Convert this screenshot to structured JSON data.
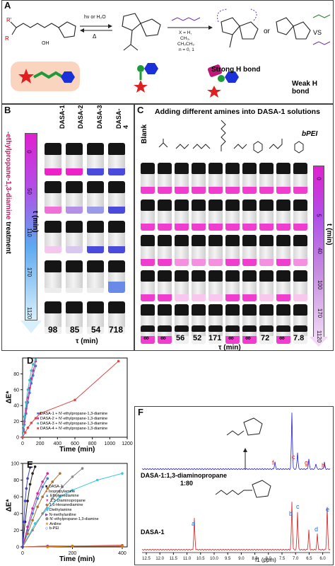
{
  "panelA": {
    "label": "A",
    "arrow1": "hν or H₂O",
    "arrow1_under": "Δ",
    "arrow2_top": "X = H,",
    "arrow2_mid": "CH₃,",
    "arrow2_mid2": "CH₂CH₃",
    "arrow2_bot": "n = 0, 1",
    "strong": "Strong H bond",
    "or": "or",
    "vs": "VS",
    "weak": "Weak H bond"
  },
  "panelB": {
    "label": "B",
    "columns": [
      "DASA-1",
      "DASA-2",
      "DASA-3",
      "DASA-4"
    ],
    "side_title": "N'-ethylpropane-1,3-diamine treatment",
    "side_title_prefix": "N'",
    "side_title_red": "-ethylpropane-1,3-diamine",
    "side_title_black": " treatment",
    "axis_label": "t (min)",
    "ticks": [
      "0",
      "50",
      "110",
      "170",
      "1120"
    ],
    "tau_values": [
      "98",
      "85",
      "54",
      "718"
    ],
    "tau_label": "τ (min)",
    "colors": {
      "magenta": "#ee22c8",
      "blue": "#4a4adc",
      "purple": "#8a6ad0"
    }
  },
  "panelC": {
    "label": "C",
    "title": "Adding different amines into DASA-1 solutions",
    "blank_label": "Blank",
    "bpei_label": "bPEI",
    "axis_label": "t (min)",
    "ticks": [
      "0",
      "5",
      "40",
      "100",
      "170",
      "1120"
    ],
    "tau_values": [
      "∞",
      "∞",
      "56",
      "52",
      "171",
      "∞",
      "∞",
      "72",
      "∞",
      "7.8"
    ],
    "tau_label": "τ (min)"
  },
  "panelD": {
    "label": "D",
    "ylabel": "ΔE*",
    "xlabel": "Time (min)",
    "legend": [
      "DASA-1 + N'-ethylpropane-1,3-diamine",
      "DASA-2 + N'-ethylpropane-1,3-diamine",
      "DASA-3 + N'-ethylpropane-1,3-diamine",
      "DASA-4 + N'-ethylpropane-1,3-diamine"
    ]
  },
  "panelE": {
    "label": "E",
    "ylabel": "ΔE*",
    "xlabel": "Time (min)",
    "legend": [
      "DASA-1",
      "Isopropylamine",
      "Ethylenediamine",
      "1,3-Diaminopropane",
      "1,6-Hexanediamine",
      "Diethylamine",
      "N-methylaniline",
      "N'-ethylpropane-1,3-diamine",
      "Aniline",
      "b-PEI"
    ]
  },
  "panelF": {
    "label": "F",
    "top_label": "DASA-1:1,3-diaminopropane",
    "top_ratio": "1:80",
    "bottom_label": "DASA-1",
    "xlabel": "f1 (ppm)",
    "peak_labels_top": [
      "f",
      "c",
      "g",
      "h"
    ],
    "peak_labels_bottom": [
      "a",
      "b",
      "c",
      "d",
      "e"
    ],
    "mol_labels": [
      "b",
      "c",
      "d",
      "e",
      "a"
    ]
  },
  "chart_data": [
    {
      "type": "scatter",
      "title": "D",
      "xlabel": "Time (min)",
      "ylabel": "ΔE*",
      "xlim": [
        0,
        1200
      ],
      "ylim": [
        0,
        100
      ],
      "xticks": [
        0,
        200,
        400,
        600,
        800,
        1000,
        1200
      ],
      "yticks": [
        0,
        20,
        40,
        60,
        80
      ],
      "series": [
        {
          "name": "DASA-1 + N'-ethylpropane-1,3-diamine",
          "color": "#3a7be0",
          "x": [
            0,
            10,
            20,
            40,
            60,
            80,
            100,
            120,
            150
          ],
          "y": [
            0,
            8,
            16,
            30,
            44,
            56,
            68,
            78,
            90
          ]
        },
        {
          "name": "DASA-2 + N'-ethylpropane-1,3-diamine",
          "color": "#d02aa0",
          "x": [
            0,
            10,
            20,
            40,
            60,
            80,
            100,
            120,
            150
          ],
          "y": [
            0,
            10,
            20,
            36,
            50,
            62,
            74,
            84,
            96
          ]
        },
        {
          "name": "DASA-3 + N'-ethylpropane-1,3-diamine",
          "color": "#38c0c0",
          "x": [
            0,
            10,
            20,
            40,
            60,
            80,
            100,
            120,
            150
          ],
          "y": [
            0,
            14,
            26,
            44,
            60,
            72,
            84,
            92,
            98
          ]
        },
        {
          "name": "DASA-4 + N'-ethylpropane-1,3-diamine",
          "color": "#e04848",
          "x": [
            0,
            30,
            60,
            100,
            150,
            200,
            600,
            1100
          ],
          "y": [
            0,
            6,
            12,
            18,
            24,
            30,
            47,
            96
          ]
        }
      ]
    },
    {
      "type": "scatter",
      "title": "E",
      "xlabel": "Time (min)",
      "ylabel": "ΔE*",
      "xlim": [
        0,
        420
      ],
      "ylim": [
        0,
        100
      ],
      "xticks": [
        0,
        200,
        400
      ],
      "yticks": [
        0,
        20,
        40,
        60,
        80,
        100
      ],
      "series": [
        {
          "name": "DASA-1",
          "color": "#222222",
          "x": [
            0,
            10,
            20,
            30,
            40,
            50
          ],
          "y": [
            0,
            30,
            55,
            75,
            88,
            96
          ]
        },
        {
          "name": "Isopropylamine",
          "color": "#e04848",
          "x": [
            0,
            100,
            200,
            400
          ],
          "y": [
            0,
            1,
            1,
            2
          ]
        },
        {
          "name": "Ethylenediamine",
          "color": "#3a7be0",
          "x": [
            0,
            20,
            40,
            60,
            80,
            100
          ],
          "y": [
            0,
            20,
            40,
            58,
            72,
            82
          ]
        },
        {
          "name": "1,3-Diaminopropane",
          "color": "#d02aa0",
          "x": [
            0,
            20,
            40,
            60,
            80,
            100
          ],
          "y": [
            0,
            24,
            46,
            64,
            78,
            88
          ]
        },
        {
          "name": "1,6-Hexanediamine",
          "color": "#b07030",
          "x": [
            0,
            20,
            40,
            60,
            80,
            100,
            120,
            150
          ],
          "y": [
            0,
            16,
            32,
            48,
            60,
            70,
            78,
            88
          ]
        },
        {
          "name": "Diethylamine",
          "color": "#3cc8e0",
          "x": [
            0,
            50,
            100,
            150,
            200,
            300,
            400
          ],
          "y": [
            0,
            28,
            46,
            60,
            68,
            80,
            88
          ]
        },
        {
          "name": "N-methylaniline",
          "color": "#7a4aa0",
          "x": [
            0,
            100,
            200,
            400
          ],
          "y": [
            0,
            1,
            1,
            1
          ]
        },
        {
          "name": "N'-ethylpropane-1,3-diamine",
          "color": "#888888",
          "x": [
            0,
            40,
            80,
            120,
            160,
            200,
            240
          ],
          "y": [
            0,
            20,
            40,
            58,
            72,
            84,
            94
          ]
        },
        {
          "name": "Aniline",
          "color": "#e07800",
          "x": [
            0,
            100,
            200,
            400
          ],
          "y": [
            0,
            0,
            1,
            1
          ]
        },
        {
          "name": "b-PEI",
          "color": "#4040d0",
          "x": [
            0,
            5,
            10,
            15,
            20,
            30
          ],
          "y": [
            0,
            30,
            55,
            70,
            82,
            95
          ]
        }
      ]
    }
  ]
}
